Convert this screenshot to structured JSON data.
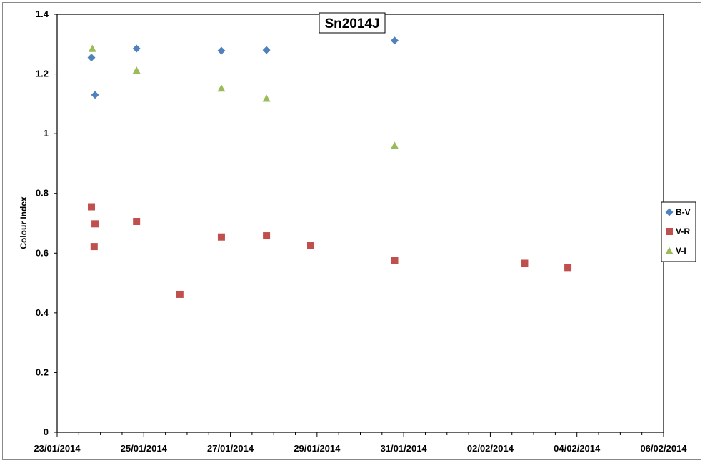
{
  "chart_data": {
    "type": "scatter",
    "title": "Sn2014J",
    "xlabel": "",
    "ylabel": "Colour Index",
    "ylim": [
      0,
      1.4
    ],
    "yticks": [
      "0",
      "0.2",
      "0.4",
      "0.6",
      "0.8",
      "1",
      "1.2",
      "1.4"
    ],
    "xlim": [
      "2014-01-23",
      "2014-02-06"
    ],
    "xticks": [
      "23/01/2014",
      "25/01/2014",
      "27/01/2014",
      "29/01/2014",
      "31/01/2014",
      "02/02/2014",
      "04/02/2014",
      "06/02/2014"
    ],
    "grid": false,
    "legend_position": "right",
    "series": [
      {
        "name": "B-V",
        "marker": "diamond",
        "color": "#4F81BD",
        "points": [
          {
            "x": "2014-01-23T19:00",
            "y": 1.255
          },
          {
            "x": "2014-01-23T21:00",
            "y": 1.13
          },
          {
            "x": "2014-01-24T20:00",
            "y": 1.285
          },
          {
            "x": "2014-01-26T19:00",
            "y": 1.278
          },
          {
            "x": "2014-01-27T20:00",
            "y": 1.28
          },
          {
            "x": "2014-01-30T19:00",
            "y": 1.312
          }
        ]
      },
      {
        "name": "V-R",
        "marker": "square",
        "color": "#C0504D",
        "points": [
          {
            "x": "2014-01-23T19:00",
            "y": 0.755
          },
          {
            "x": "2014-01-23T21:00",
            "y": 0.698
          },
          {
            "x": "2014-01-23T20:30",
            "y": 0.622
          },
          {
            "x": "2014-01-24T20:00",
            "y": 0.706
          },
          {
            "x": "2014-01-25T20:00",
            "y": 0.462
          },
          {
            "x": "2014-01-26T19:00",
            "y": 0.654
          },
          {
            "x": "2014-01-27T20:00",
            "y": 0.658
          },
          {
            "x": "2014-01-28T20:30",
            "y": 0.625
          },
          {
            "x": "2014-01-30T19:00",
            "y": 0.575
          },
          {
            "x": "2014-02-02T19:00",
            "y": 0.566
          },
          {
            "x": "2014-02-03T19:00",
            "y": 0.552
          }
        ]
      },
      {
        "name": "V-I",
        "marker": "triangle",
        "color": "#9BBB59",
        "points": [
          {
            "x": "2014-01-23T19:30",
            "y": 1.285
          },
          {
            "x": "2014-01-24T20:00",
            "y": 1.212
          },
          {
            "x": "2014-01-26T19:00",
            "y": 1.152
          },
          {
            "x": "2014-01-27T20:00",
            "y": 1.118
          },
          {
            "x": "2014-01-30T19:00",
            "y": 0.96
          }
        ]
      }
    ]
  }
}
